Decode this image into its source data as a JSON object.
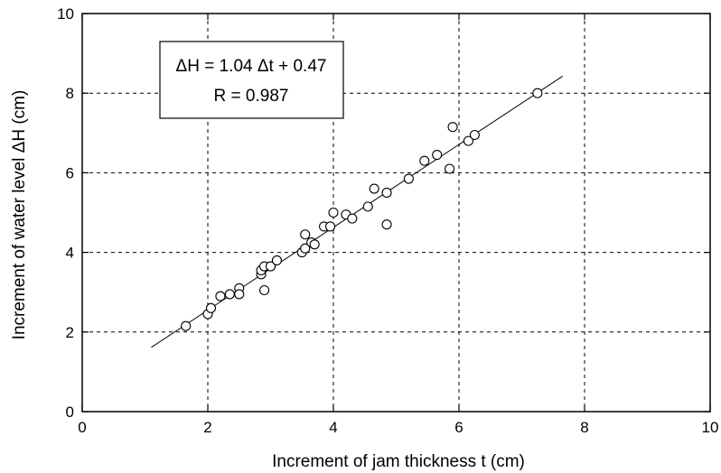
{
  "chart_data": {
    "type": "scatter",
    "title": "",
    "xlabel": "Increment of jam thickness  t (cm)",
    "ylabel": "Increment of water level ΔH (cm)",
    "xlim": [
      0,
      10
    ],
    "ylim": [
      0,
      10
    ],
    "xticks": [
      "0",
      "2",
      "4",
      "6",
      "8",
      "10"
    ],
    "yticks": [
      "0",
      "2",
      "4",
      "6",
      "8",
      "10"
    ],
    "grid": true,
    "annotation": {
      "line1": "ΔH = 1.04 Δt + 0.47",
      "line2": "R = 0.987"
    },
    "fit_line": {
      "slope": 1.04,
      "intercept": 0.47,
      "x_range": [
        1.1,
        7.65
      ]
    },
    "points": [
      [
        1.65,
        2.15
      ],
      [
        2.0,
        2.45
      ],
      [
        2.05,
        2.6
      ],
      [
        2.2,
        2.9
      ],
      [
        2.35,
        2.95
      ],
      [
        2.5,
        3.1
      ],
      [
        2.5,
        2.95
      ],
      [
        2.85,
        3.45
      ],
      [
        2.85,
        3.55
      ],
      [
        2.9,
        3.65
      ],
      [
        2.9,
        3.05
      ],
      [
        3.0,
        3.65
      ],
      [
        3.1,
        3.8
      ],
      [
        3.5,
        4.0
      ],
      [
        3.55,
        4.1
      ],
      [
        3.55,
        4.45
      ],
      [
        3.65,
        4.25
      ],
      [
        3.7,
        4.2
      ],
      [
        3.85,
        4.65
      ],
      [
        3.95,
        4.65
      ],
      [
        4.0,
        5.0
      ],
      [
        4.2,
        4.95
      ],
      [
        4.3,
        4.85
      ],
      [
        4.55,
        5.15
      ],
      [
        4.65,
        5.6
      ],
      [
        4.85,
        5.5
      ],
      [
        4.85,
        4.7
      ],
      [
        5.2,
        5.85
      ],
      [
        5.45,
        6.3
      ],
      [
        5.65,
        6.45
      ],
      [
        5.85,
        6.1
      ],
      [
        5.9,
        7.15
      ],
      [
        6.15,
        6.8
      ],
      [
        6.25,
        6.95
      ],
      [
        7.25,
        8.0
      ]
    ]
  }
}
